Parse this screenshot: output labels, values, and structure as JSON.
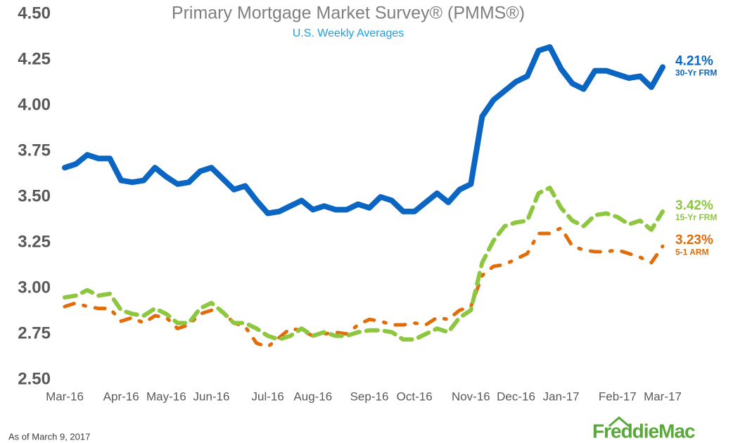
{
  "chart_data": {
    "type": "line",
    "title": "Primary Mortgage Market Survey® (PMMS®)",
    "subtitle": "U.S. Weekly Averages",
    "footnote": "As of March 9, 2017",
    "logo": "FreddieMac",
    "categories": [
      "Mar-16",
      null,
      null,
      null,
      null,
      "Apr-16",
      null,
      null,
      null,
      "May-16",
      null,
      null,
      null,
      "Jun-16",
      null,
      null,
      null,
      null,
      "Jul-16",
      null,
      null,
      null,
      "Aug-16",
      null,
      null,
      null,
      null,
      "Sep-16",
      null,
      null,
      null,
      "Oct-16",
      null,
      null,
      null,
      null,
      "Nov-16",
      null,
      null,
      null,
      "Dec-16",
      null,
      null,
      null,
      "Jan-17",
      null,
      null,
      null,
      null,
      "Feb-17",
      null,
      null,
      null,
      "Mar-17"
    ],
    "ylim": [
      2.5,
      4.5
    ],
    "yticks": [
      {
        "value": 2.5,
        "label": "2.50"
      },
      {
        "value": 2.75,
        "label": "2.75"
      },
      {
        "value": 3.0,
        "label": "3.00"
      },
      {
        "value": 3.25,
        "label": "3.25"
      },
      {
        "value": 3.5,
        "label": "3.50"
      },
      {
        "value": 3.75,
        "label": "3.75"
      },
      {
        "value": 4.0,
        "label": "4.00"
      },
      {
        "value": 4.25,
        "label": "4.25"
      },
      {
        "value": 4.5,
        "label": "4.50"
      }
    ],
    "grid": false,
    "series": [
      {
        "name": "30-Yr FRM",
        "color": "#0a66c2",
        "line_style": "solid",
        "values": [
          3.66,
          3.68,
          3.73,
          3.71,
          3.71,
          3.59,
          3.58,
          3.59,
          3.66,
          3.61,
          3.57,
          3.58,
          3.64,
          3.66,
          3.6,
          3.54,
          3.56,
          3.48,
          3.41,
          3.42,
          3.45,
          3.48,
          3.43,
          3.45,
          3.43,
          3.43,
          3.46,
          3.44,
          3.5,
          3.48,
          3.42,
          3.42,
          3.47,
          3.52,
          3.47,
          3.54,
          3.57,
          3.94,
          4.03,
          4.08,
          4.13,
          4.16,
          4.3,
          4.32,
          4.2,
          4.12,
          4.09,
          4.19,
          4.19,
          4.17,
          4.15,
          4.16,
          4.1,
          4.21
        ],
        "value_labels": [
          null,
          null,
          null,
          null,
          null,
          null,
          null,
          null,
          null,
          null,
          null,
          null,
          null,
          null,
          null,
          null,
          null,
          null,
          null,
          null,
          null,
          null,
          null,
          null,
          null,
          null,
          null,
          null,
          null,
          null,
          null,
          null,
          null,
          null,
          null,
          null,
          null,
          null,
          null,
          null,
          null,
          null,
          null,
          null,
          null,
          null,
          null,
          null,
          null,
          null,
          null,
          null,
          null,
          "4.21%"
        ]
      },
      {
        "name": "15-Yr FRM",
        "color": "#8dc63f",
        "line_style": "dashed",
        "values": [
          2.95,
          2.96,
          2.99,
          2.96,
          2.97,
          2.88,
          2.86,
          2.85,
          2.89,
          2.86,
          2.81,
          2.81,
          2.89,
          2.92,
          2.87,
          2.81,
          2.81,
          2.78,
          2.74,
          2.72,
          2.74,
          2.78,
          2.74,
          2.76,
          2.74,
          2.74,
          2.76,
          2.77,
          2.77,
          2.76,
          2.72,
          2.72,
          2.75,
          2.78,
          2.76,
          2.84,
          2.88,
          3.14,
          3.26,
          3.34,
          3.36,
          3.37,
          3.52,
          3.55,
          3.44,
          3.37,
          3.34,
          3.4,
          3.41,
          3.39,
          3.35,
          3.37,
          3.32,
          3.42
        ],
        "value_labels": [
          null,
          null,
          null,
          null,
          null,
          null,
          null,
          null,
          null,
          null,
          null,
          null,
          null,
          null,
          null,
          null,
          null,
          null,
          null,
          null,
          null,
          null,
          null,
          null,
          null,
          null,
          null,
          null,
          null,
          null,
          null,
          null,
          null,
          null,
          null,
          null,
          null,
          null,
          null,
          null,
          null,
          null,
          null,
          null,
          null,
          null,
          null,
          null,
          null,
          null,
          null,
          null,
          null,
          "3.42%"
        ]
      },
      {
        "name": "5-1 ARM",
        "color": "#e36c0a",
        "line_style": "dash-dot",
        "values": [
          2.9,
          2.92,
          2.9,
          2.89,
          2.89,
          2.82,
          2.84,
          2.81,
          2.85,
          2.84,
          2.78,
          2.8,
          2.86,
          2.88,
          2.87,
          2.81,
          2.79,
          2.7,
          2.68,
          2.73,
          2.78,
          2.77,
          2.74,
          2.75,
          2.76,
          2.75,
          2.8,
          2.83,
          2.82,
          2.8,
          2.8,
          2.81,
          2.8,
          2.84,
          2.83,
          2.88,
          2.9,
          3.07,
          3.12,
          3.13,
          3.16,
          3.19,
          3.3,
          3.3,
          3.33,
          3.23,
          3.21,
          3.2,
          3.2,
          3.21,
          3.19,
          3.17,
          3.14,
          3.23
        ],
        "value_labels": [
          null,
          null,
          null,
          null,
          null,
          null,
          null,
          null,
          null,
          null,
          null,
          null,
          null,
          null,
          null,
          null,
          null,
          null,
          null,
          null,
          null,
          null,
          null,
          null,
          null,
          null,
          null,
          null,
          null,
          null,
          null,
          null,
          null,
          null,
          null,
          null,
          null,
          null,
          null,
          null,
          null,
          null,
          null,
          null,
          null,
          null,
          null,
          null,
          null,
          null,
          null,
          null,
          null,
          "3.23%"
        ]
      }
    ]
  }
}
